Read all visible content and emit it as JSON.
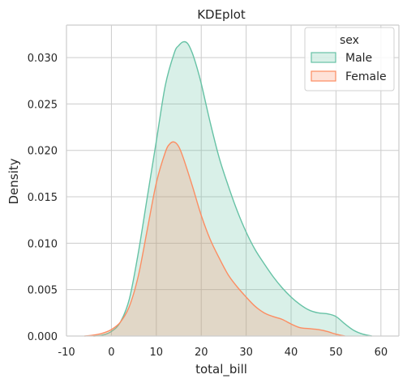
{
  "chart_data": {
    "type": "area",
    "title": "KDEplot",
    "xlabel": "total_bill",
    "ylabel": "Density",
    "xlim": [
      -10,
      64
    ],
    "ylim": [
      0,
      0.0335
    ],
    "x_ticks": [
      "-10",
      "0",
      "10",
      "20",
      "30",
      "40",
      "50",
      "60"
    ],
    "y_ticks": [
      "0.000",
      "0.005",
      "0.010",
      "0.015",
      "0.020",
      "0.025",
      "0.030"
    ],
    "grid": true,
    "legend": {
      "title": "sex",
      "placement": "top-right"
    },
    "series": [
      {
        "name": "Male",
        "color": "#66c2a5",
        "x": [
          -4,
          -2,
          0,
          2,
          4,
          6,
          8,
          10,
          12,
          14,
          15,
          16,
          17,
          18,
          19,
          20,
          22,
          24,
          26,
          28,
          30,
          32,
          34,
          36,
          38,
          40,
          42,
          44,
          46,
          48,
          50,
          52,
          54,
          56,
          58
        ],
        "y": [
          0.0,
          0.0001,
          0.0005,
          0.0015,
          0.004,
          0.009,
          0.015,
          0.021,
          0.027,
          0.0305,
          0.0313,
          0.0317,
          0.0315,
          0.0305,
          0.029,
          0.0272,
          0.023,
          0.0192,
          0.0162,
          0.0135,
          0.0112,
          0.0093,
          0.0078,
          0.0064,
          0.0052,
          0.0042,
          0.0034,
          0.0028,
          0.0025,
          0.0024,
          0.0021,
          0.0013,
          0.0006,
          0.0002,
          0.0
        ]
      },
      {
        "name": "Female",
        "color": "#fc8d62",
        "x": [
          -6,
          -4,
          -2,
          0,
          2,
          4,
          6,
          8,
          10,
          12,
          13,
          14,
          15,
          16,
          18,
          20,
          22,
          24,
          26,
          28,
          30,
          32,
          34,
          36,
          38,
          40,
          42,
          44,
          46,
          48,
          50,
          52
        ],
        "y": [
          0.0,
          0.0001,
          0.0003,
          0.0007,
          0.0015,
          0.0032,
          0.0065,
          0.0115,
          0.0165,
          0.0198,
          0.0207,
          0.0209,
          0.0204,
          0.0192,
          0.0162,
          0.013,
          0.0104,
          0.0084,
          0.0066,
          0.0053,
          0.0042,
          0.0032,
          0.0025,
          0.0021,
          0.0018,
          0.0013,
          0.0009,
          0.0008,
          0.0007,
          0.0005,
          0.0002,
          0.0
        ]
      }
    ]
  }
}
